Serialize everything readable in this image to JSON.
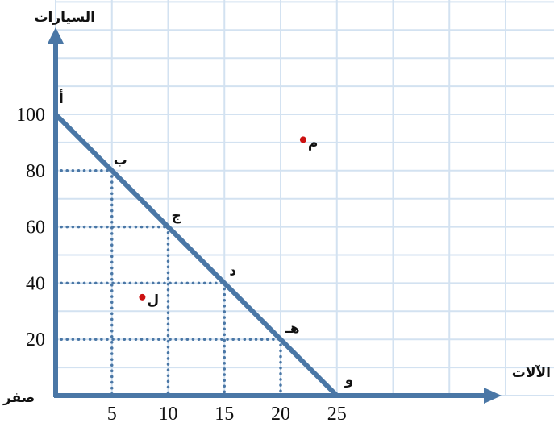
{
  "chart_data": {
    "type": "line",
    "xlabel": "الآلات",
    "ylabel": "السيارات",
    "origin_label": "صفر",
    "xlim": [
      0,
      25
    ],
    "ylim": [
      0,
      100
    ],
    "x_ticks": [
      5,
      10,
      15,
      20,
      25
    ],
    "y_ticks": [
      20,
      40,
      60,
      80,
      100
    ],
    "grid": true,
    "series": [
      {
        "points": [
          {
            "x": 0,
            "y": 100,
            "label": "أ"
          },
          {
            "x": 5,
            "y": 80,
            "label": "ب"
          },
          {
            "x": 10,
            "y": 60,
            "label": "ج"
          },
          {
            "x": 15,
            "y": 40,
            "label": "د"
          },
          {
            "x": 20,
            "y": 20,
            "label": "هـ"
          },
          {
            "x": 25,
            "y": 0,
            "label": "و"
          }
        ]
      }
    ],
    "extra_points": [
      {
        "x": 22,
        "y": 91,
        "label": "م"
      },
      {
        "x": 7.7,
        "y": 35,
        "label": "ل"
      }
    ],
    "colors": {
      "line": "#4a77a6",
      "axis": "#4a77a6",
      "grid": "#d3e2f1",
      "dotted": "#4a77a6",
      "point": "#cc1111"
    }
  }
}
